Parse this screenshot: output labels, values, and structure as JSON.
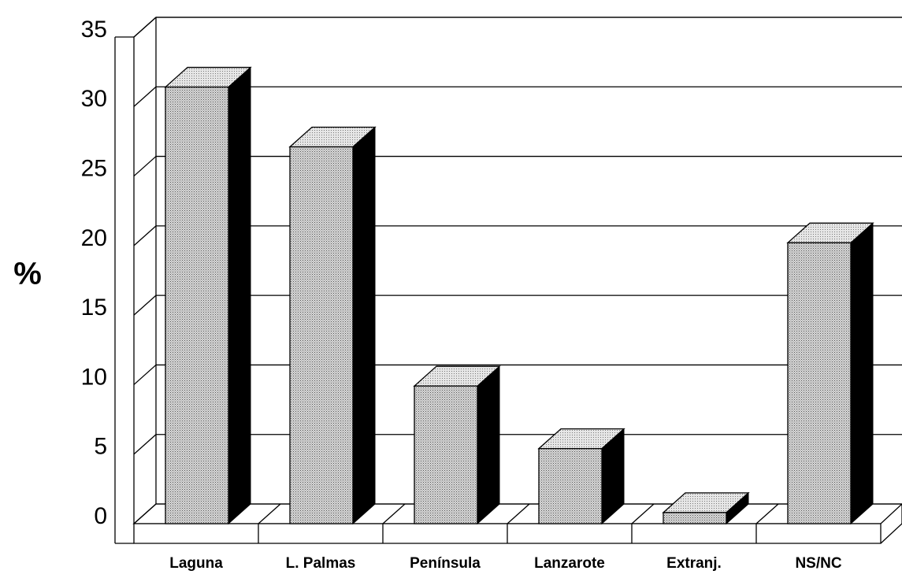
{
  "chart_data": {
    "type": "bar3d",
    "y_label": "%",
    "categories": [
      "Laguna",
      "L. Palmas",
      "Península",
      "Lanzarote",
      "Extranj.",
      "NS/NC"
    ],
    "values": [
      31.4,
      27.1,
      9.9,
      5.4,
      0.8,
      20.2
    ],
    "color": "#b8b8b8",
    "ylim": [
      0,
      35
    ],
    "yticks": [
      0,
      5,
      10,
      15,
      20,
      25,
      30,
      35
    ],
    "grid": true
  }
}
